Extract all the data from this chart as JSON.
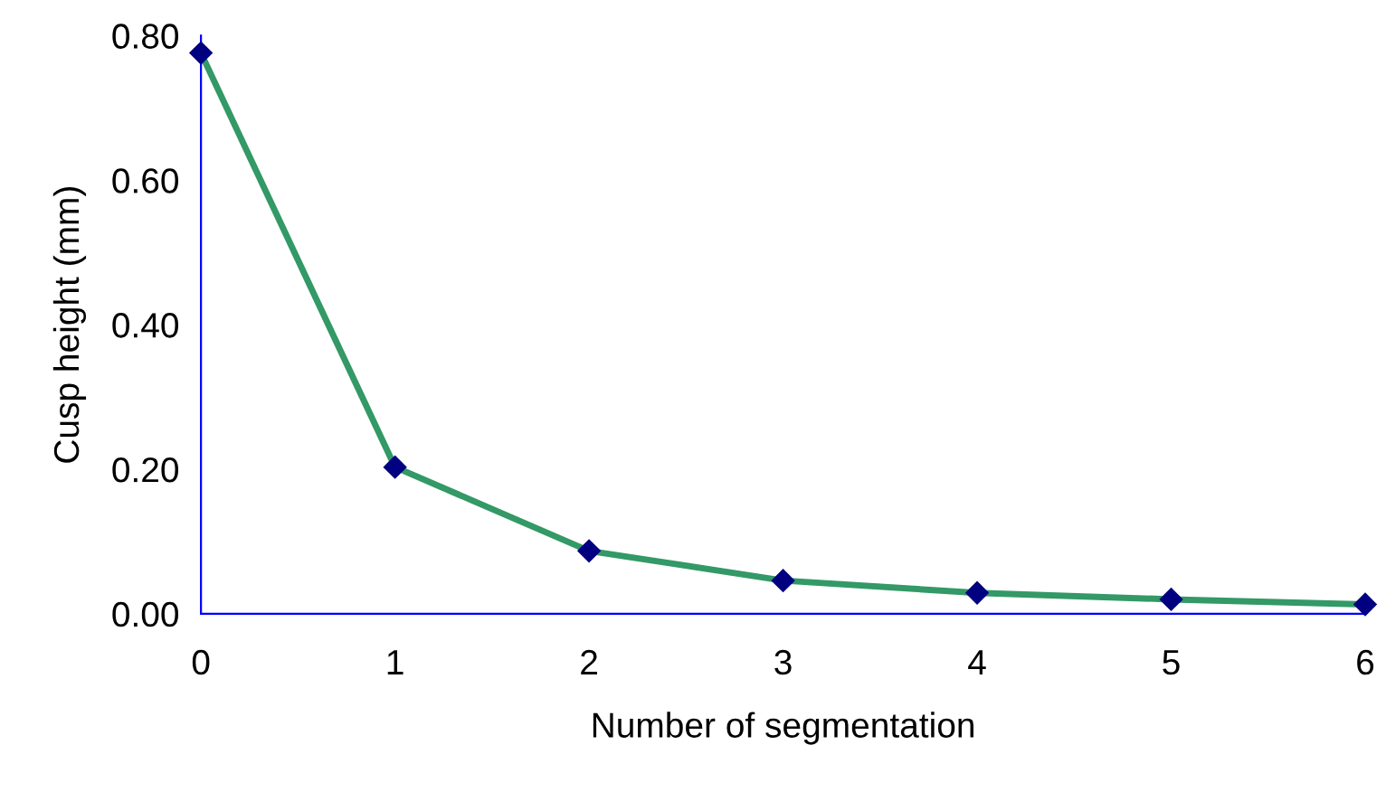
{
  "chart_data": {
    "type": "line",
    "xlabel": "Number of segmentation",
    "ylabel": "Cusp height (mm)",
    "x": [
      0,
      1,
      2,
      3,
      4,
      5,
      6
    ],
    "series": [
      {
        "color": "#339966",
        "marker": "none",
        "line_style": "solid",
        "values": [
          0.776,
          0.203,
          0.087,
          0.046,
          0.029,
          0.02,
          0.013
        ]
      },
      {
        "type": "scatter",
        "color": "#000080",
        "marker": "diamond",
        "values": [
          0.776,
          0.203,
          0.087,
          0.046,
          0.029,
          0.02,
          0.013
        ]
      }
    ],
    "xlim": [
      0,
      6
    ],
    "xticks": [
      0,
      1,
      2,
      3,
      4,
      5,
      6
    ],
    "ylim": [
      0,
      0.8
    ],
    "yticks": [
      {
        "value": 0,
        "label": "0.00"
      },
      {
        "value": 0.2,
        "label": "0.20"
      },
      {
        "value": 0.4,
        "label": "0.40"
      },
      {
        "value": 0.6,
        "label": "0.60"
      },
      {
        "value": 0.8,
        "label": "0.80"
      }
    ],
    "grid": false,
    "legend": false
  }
}
